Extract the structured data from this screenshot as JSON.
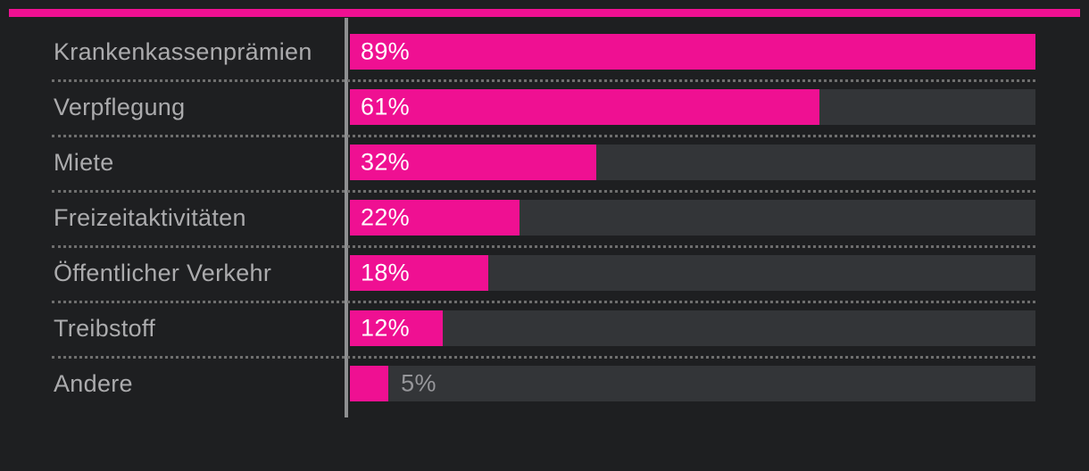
{
  "page": {
    "background": "#1E1F21",
    "accent_color": "#EF1092",
    "track_color": "#333538",
    "category_label_color": "#ABABAD",
    "axis_color": "#8E8F91",
    "separator_color": "#6E6E6E",
    "value_label_inside_color": "#FFFFFF",
    "value_label_outside_color": "#96969A"
  },
  "chart_data": {
    "type": "bar",
    "orientation": "horizontal",
    "categories": [
      "Krankenkassenprämien",
      "Verpflegung",
      "Miete",
      "Freizeitaktivitäten",
      "Öffentlicher Verkehr",
      "Treibstoff",
      "Andere"
    ],
    "values": [
      89,
      61,
      32,
      22,
      18,
      12,
      5
    ],
    "display_values": [
      "89%",
      "61%",
      "32%",
      "22%",
      "18%",
      "12%",
      "5%"
    ],
    "value_suffix": "%",
    "xlim": [
      0,
      89
    ],
    "bar_color": "#EF1092",
    "grid": false,
    "legend": false,
    "notes": "bars normalized so the maximum value (89%) fills the full track width; 5% value label drawn outside its bar"
  }
}
